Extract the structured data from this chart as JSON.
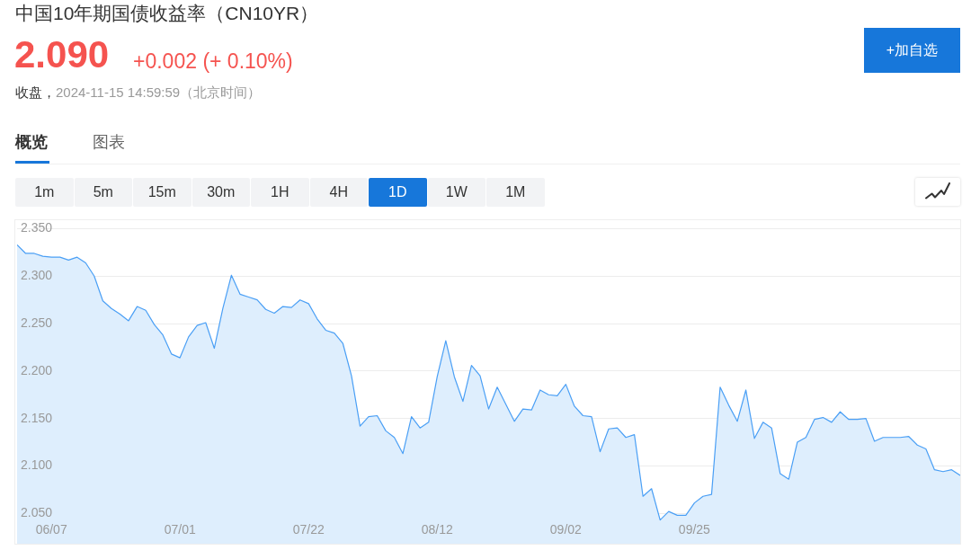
{
  "chart_data": {
    "type": "area",
    "title": "中国10年期国债收益率（CN10YR）",
    "annotations": [
      "2.090",
      "+0.002 (+ 0.10%)",
      "收盘，",
      "2024-11-15 14:59:59（北京时间）",
      "+加自选",
      "概览",
      "图表",
      "1m",
      "5m",
      "15m",
      "30m",
      "1H",
      "4H",
      "1D",
      "1W",
      "1M"
    ],
    "categories": [
      null,
      null,
      null,
      null,
      "06/07",
      null,
      null,
      null,
      null,
      null,
      null,
      null,
      null,
      null,
      null,
      null,
      null,
      null,
      null,
      "07/01",
      null,
      null,
      null,
      null,
      null,
      null,
      null,
      null,
      null,
      null,
      null,
      null,
      null,
      null,
      "07/22",
      null,
      null,
      null,
      null,
      null,
      null,
      null,
      null,
      null,
      null,
      null,
      null,
      null,
      null,
      "08/12",
      null,
      null,
      null,
      null,
      null,
      null,
      null,
      null,
      null,
      null,
      null,
      null,
      null,
      null,
      "09/02",
      null,
      null,
      null,
      null,
      null,
      null,
      null,
      null,
      null,
      null,
      null,
      null,
      null,
      null,
      "09/25",
      null,
      null,
      null,
      null,
      null,
      null,
      null,
      null,
      null,
      null,
      null,
      null,
      null,
      null,
      null,
      null,
      null,
      null,
      null,
      null,
      null,
      null,
      null,
      null,
      null,
      null,
      null,
      null,
      null,
      null,
      null
    ],
    "values": [
      2.333,
      2.324,
      2.324,
      2.321,
      2.32,
      2.32,
      2.317,
      2.32,
      2.314,
      2.3,
      2.274,
      2.266,
      2.26,
      2.253,
      2.268,
      2.264,
      2.249,
      2.238,
      2.218,
      2.214,
      2.236,
      2.248,
      2.251,
      2.224,
      2.266,
      2.301,
      2.281,
      2.278,
      2.275,
      2.265,
      2.261,
      2.268,
      2.267,
      2.275,
      2.271,
      2.255,
      2.243,
      2.24,
      2.229,
      2.195,
      2.142,
      2.152,
      2.153,
      2.137,
      2.13,
      2.113,
      2.152,
      2.14,
      2.146,
      2.194,
      2.232,
      2.194,
      2.168,
      2.206,
      2.195,
      2.16,
      2.183,
      2.165,
      2.147,
      2.16,
      2.159,
      2.18,
      2.175,
      2.174,
      2.186,
      2.163,
      2.153,
      2.152,
      2.115,
      2.139,
      2.14,
      2.13,
      2.133,
      2.068,
      2.076,
      2.043,
      2.052,
      2.048,
      2.048,
      2.061,
      2.068,
      2.07,
      2.183,
      2.164,
      2.147,
      2.18,
      2.129,
      2.146,
      2.14,
      2.092,
      2.086,
      2.125,
      2.13,
      2.149,
      2.151,
      2.146,
      2.157,
      2.149,
      2.149,
      2.15,
      2.126,
      2.13,
      2.13,
      2.13,
      2.131,
      2.122,
      2.118,
      2.096,
      2.094,
      2.096,
      2.09
    ],
    "color": "#4a9ff5",
    "ylim": [
      2.018,
      2.359
    ],
    "yticks": [
      {
        "value": 2.05,
        "label": "2.050"
      },
      {
        "value": 2.1,
        "label": "2.100"
      },
      {
        "value": 2.15,
        "label": "2.150"
      },
      {
        "value": 2.2,
        "label": "2.200"
      },
      {
        "value": 2.25,
        "label": "2.250"
      },
      {
        "value": 2.3,
        "label": "2.300"
      },
      {
        "value": 2.35,
        "label": "2.350"
      }
    ],
    "grid": "y"
  }
}
